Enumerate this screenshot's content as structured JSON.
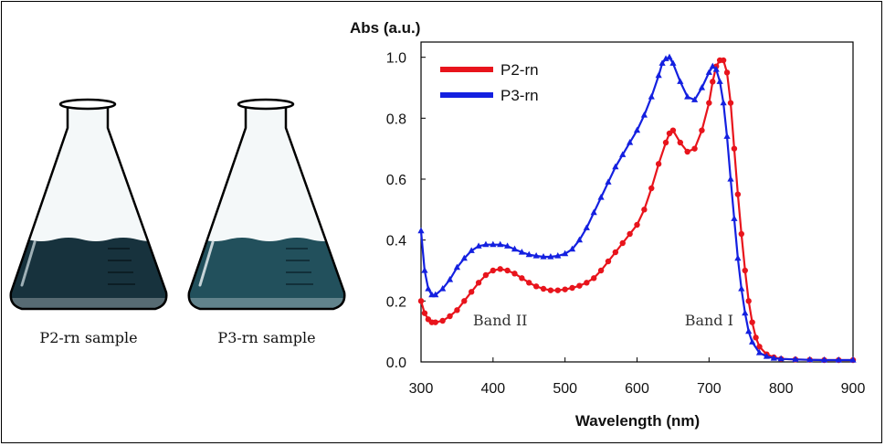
{
  "flasks": [
    {
      "caption": "P2-rn sample",
      "liquid_color": "#17323d",
      "highlight": "#9fb0b6"
    },
    {
      "caption": "P3-rn sample",
      "liquid_color": "#22505c",
      "highlight": "#c7d4d8"
    }
  ],
  "chart_data": {
    "type": "line",
    "ylabel": "Abs (a.u.)",
    "xlabel": "Wavelength (nm)",
    "xlim": [
      300,
      900
    ],
    "ylim": [
      0,
      1.05
    ],
    "xticks": [
      300,
      400,
      500,
      600,
      700,
      800,
      900
    ],
    "yticks": [
      "0.0",
      "0.2",
      "0.4",
      "0.6",
      "0.8",
      "1.0"
    ],
    "grid": false,
    "legend_position": "top-left",
    "annotations": [
      {
        "text": "Band II",
        "x": 410,
        "y": 0.12
      },
      {
        "text": "Band I",
        "x": 700,
        "y": 0.12
      }
    ],
    "series": [
      {
        "name": "P2-rn",
        "color": "#e8141c",
        "marker": "circle",
        "x": [
          300,
          305,
          310,
          315,
          320,
          330,
          340,
          350,
          360,
          370,
          380,
          390,
          400,
          410,
          420,
          430,
          440,
          450,
          460,
          470,
          480,
          490,
          500,
          510,
          520,
          530,
          540,
          550,
          560,
          570,
          580,
          590,
          600,
          610,
          620,
          630,
          640,
          645,
          650,
          660,
          670,
          680,
          690,
          700,
          705,
          710,
          715,
          720,
          725,
          730,
          735,
          740,
          745,
          750,
          755,
          760,
          765,
          770,
          780,
          790,
          800,
          820,
          840,
          860,
          880,
          900
        ],
        "y": [
          0.2,
          0.16,
          0.14,
          0.13,
          0.13,
          0.135,
          0.15,
          0.17,
          0.2,
          0.23,
          0.26,
          0.285,
          0.3,
          0.305,
          0.3,
          0.29,
          0.275,
          0.26,
          0.248,
          0.24,
          0.235,
          0.235,
          0.238,
          0.243,
          0.25,
          0.26,
          0.275,
          0.3,
          0.33,
          0.36,
          0.39,
          0.42,
          0.45,
          0.5,
          0.57,
          0.65,
          0.72,
          0.75,
          0.76,
          0.72,
          0.69,
          0.7,
          0.76,
          0.85,
          0.92,
          0.97,
          0.99,
          0.99,
          0.95,
          0.85,
          0.7,
          0.55,
          0.42,
          0.3,
          0.2,
          0.13,
          0.08,
          0.05,
          0.025,
          0.015,
          0.01,
          0.008,
          0.007,
          0.006,
          0.006,
          0.006
        ]
      },
      {
        "name": "P3-rn",
        "color": "#1420e0",
        "marker": "triangle",
        "x": [
          300,
          305,
          310,
          315,
          320,
          330,
          340,
          350,
          360,
          370,
          380,
          390,
          400,
          410,
          420,
          430,
          440,
          450,
          460,
          470,
          480,
          490,
          500,
          510,
          520,
          530,
          540,
          550,
          560,
          570,
          580,
          590,
          600,
          610,
          620,
          630,
          635,
          640,
          645,
          650,
          660,
          670,
          680,
          690,
          700,
          705,
          710,
          715,
          720,
          725,
          730,
          735,
          740,
          745,
          750,
          755,
          760,
          770,
          780,
          790,
          800,
          820,
          840,
          860,
          880,
          900
        ],
        "y": [
          0.43,
          0.3,
          0.24,
          0.22,
          0.22,
          0.24,
          0.27,
          0.31,
          0.34,
          0.365,
          0.38,
          0.385,
          0.385,
          0.385,
          0.38,
          0.37,
          0.36,
          0.352,
          0.348,
          0.345,
          0.345,
          0.348,
          0.355,
          0.37,
          0.4,
          0.44,
          0.49,
          0.54,
          0.59,
          0.64,
          0.68,
          0.72,
          0.76,
          0.81,
          0.87,
          0.94,
          0.98,
          0.995,
          1.0,
          0.98,
          0.92,
          0.87,
          0.86,
          0.9,
          0.95,
          0.97,
          0.96,
          0.92,
          0.85,
          0.74,
          0.6,
          0.47,
          0.34,
          0.24,
          0.16,
          0.1,
          0.065,
          0.03,
          0.018,
          0.012,
          0.01,
          0.008,
          0.007,
          0.006,
          0.006,
          0.006
        ]
      }
    ]
  }
}
